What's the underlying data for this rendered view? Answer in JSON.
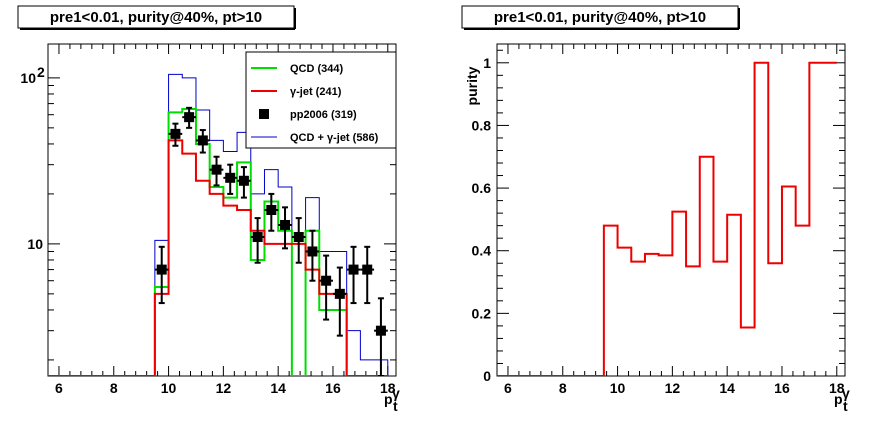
{
  "chart_data": [
    {
      "type": "line",
      "title": "pre1<0.01, purity@40%, pt>10",
      "xlabel": "p_t^γ",
      "ylabel": "",
      "xlim": [
        5.6,
        18.3
      ],
      "ylim": [
        1.6,
        160
      ],
      "yscale": "log",
      "xticks": [
        6,
        8,
        10,
        12,
        14,
        16,
        18
      ],
      "yticks": [
        {
          "value": 10,
          "label": "10"
        },
        {
          "value": 100,
          "label": "10",
          "exp": "2"
        }
      ],
      "bin_edges": [
        9.5,
        10.0,
        10.5,
        11.0,
        11.5,
        12.0,
        12.5,
        13.0,
        13.5,
        14.0,
        14.5,
        15.0,
        15.5,
        16.0,
        16.5,
        17.0,
        17.5,
        18.0
      ],
      "legend": {
        "position": "top-right"
      },
      "series": [
        {
          "name": "QCD (344)",
          "style": "hist",
          "color": "#00dd00",
          "width": 2,
          "values": [
            5.5,
            62,
            65,
            40,
            22,
            19,
            31,
            8,
            18,
            12,
            0,
            12,
            4,
            4,
            0,
            0,
            0,
            0
          ]
        },
        {
          "name": "γ-jet (241)",
          "style": "hist",
          "color": "#ee0000",
          "width": 2,
          "values": [
            5,
            42,
            35,
            24,
            20,
            17,
            16,
            12,
            10,
            10,
            10,
            7,
            5,
            5,
            0,
            0,
            0,
            0
          ]
        },
        {
          "name": "pp2006 (319)",
          "style": "points",
          "color": "#000000",
          "x": [
            9.75,
            10.25,
            10.75,
            11.25,
            11.75,
            12.25,
            12.75,
            13.25,
            13.75,
            14.25,
            14.75,
            15.25,
            15.75,
            16.25,
            16.75,
            17.25,
            17.75
          ],
          "y": [
            7,
            46,
            58,
            42,
            28,
            25,
            24,
            11,
            16,
            13,
            11,
            9,
            6,
            5,
            7,
            7,
            3
          ],
          "err": [
            2.6,
            7,
            8,
            6.5,
            5.5,
            5,
            5,
            3.3,
            4,
            3.6,
            3.3,
            3,
            2.5,
            2.2,
            2.6,
            2.6,
            1.7
          ]
        },
        {
          "name": "QCD + γ-jet (586)",
          "style": "hist",
          "color": "#0000cc",
          "width": 1,
          "values": [
            10.5,
            105,
            100,
            64,
            42,
            36,
            47,
            20,
            28,
            22,
            10,
            19,
            9,
            9,
            3,
            2,
            2,
            0
          ]
        }
      ]
    },
    {
      "type": "line",
      "title": "pre1<0.01, purity@40%, pt>10",
      "xlabel": "p_t^γ",
      "ylabel": "purity",
      "xlim": [
        5.6,
        18.3
      ],
      "ylim": [
        0,
        1.06
      ],
      "xticks": [
        6,
        8,
        10,
        12,
        14,
        16,
        18
      ],
      "yticks": [
        0,
        0.2,
        0.4,
        0.6,
        0.8,
        1
      ],
      "ytick_labels": [
        "0",
        "0.2",
        "0.4",
        "0.6",
        "0.8",
        "1"
      ],
      "bin_edges": [
        9.5,
        10.0,
        10.5,
        11.0,
        11.5,
        12.0,
        12.5,
        13.0,
        13.5,
        14.0,
        14.5,
        15.0,
        15.5,
        16.0,
        16.5,
        17.0,
        17.5,
        18.0
      ],
      "series": [
        {
          "style": "hist",
          "color": "#ee0000",
          "width": 2,
          "values": [
            0.48,
            0.41,
            0.365,
            0.39,
            0.385,
            0.525,
            0.35,
            0.7,
            0.365,
            0.515,
            0.155,
            1.0,
            0.36,
            0.605,
            0.48,
            1.0,
            1.0,
            1.0
          ]
        }
      ]
    }
  ]
}
